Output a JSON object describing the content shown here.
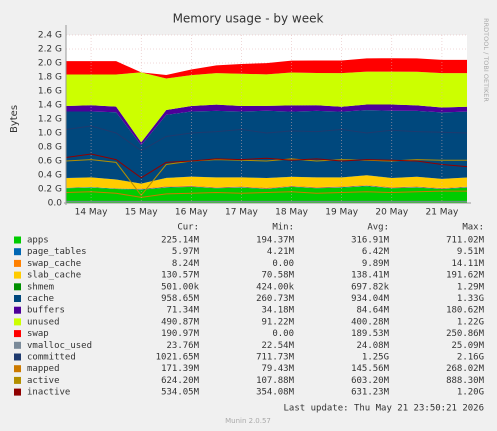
{
  "chart_data": {
    "type": "area",
    "title": "Memory usage - by week",
    "y_label": "Bytes",
    "side_text": "RRDTOOL / TOBI OETIKER",
    "footer": "Last update: Thu May 21 23:50:21 2026",
    "version": "Munin 2.0.57",
    "categories": [
      null,
      "14 May",
      null,
      "15 May",
      null,
      "16 May",
      null,
      "17 May",
      null,
      "18 May",
      null,
      "19 May",
      null,
      "20 May",
      null,
      "21 May",
      null
    ],
    "ylim": [
      0,
      2.4
    ],
    "yticks": [
      {
        "value": 0,
        "label": "0.0"
      },
      {
        "value": 0.2,
        "label": "0.2 G"
      },
      {
        "value": 0.4,
        "label": "0.4 G"
      },
      {
        "value": 0.6,
        "label": "0.6 G"
      },
      {
        "value": 0.8,
        "label": "0.8 G"
      },
      {
        "value": 1.0,
        "label": "1.0 G"
      },
      {
        "value": 1.2,
        "label": "1.2 G"
      },
      {
        "value": 1.4,
        "label": "1.4 G"
      },
      {
        "value": 1.6,
        "label": "1.6 G"
      },
      {
        "value": 1.8,
        "label": "1.8 G"
      },
      {
        "value": 2.0,
        "label": "2.0 G"
      },
      {
        "value": 2.2,
        "label": "2.2 G"
      },
      {
        "value": 2.4,
        "label": "2.4 G"
      }
    ],
    "grid": true,
    "legend_headers": [
      "Cur:",
      "Min:",
      "Avg:",
      "Max:"
    ],
    "series": [
      {
        "name": "apps",
        "color": "#00CC00",
        "style": "area",
        "stats": [
          "225.14M",
          "194.37M",
          "316.91M",
          "711.02M"
        ],
        "values": [
          0.21,
          0.22,
          0.2,
          0.19,
          0.22,
          0.23,
          0.21,
          0.22,
          0.2,
          0.23,
          0.21,
          0.22,
          0.24,
          0.21,
          0.22,
          0.2,
          0.22
        ]
      },
      {
        "name": "page_tables",
        "color": "#0066B3",
        "style": "area",
        "stats": [
          "5.97M",
          "4.21M",
          "6.42M",
          "9.51M"
        ],
        "values": [
          0.006,
          0.006,
          0.006,
          0.006,
          0.006,
          0.006,
          0.006,
          0.006,
          0.006,
          0.006,
          0.006,
          0.006,
          0.006,
          0.006,
          0.006,
          0.006,
          0.006
        ]
      },
      {
        "name": "swap_cache",
        "color": "#FF8000",
        "style": "area",
        "stats": [
          "8.24M",
          "0.00",
          "9.89M",
          "14.11M"
        ],
        "values": [
          0,
          0,
          0,
          0.01,
          0.012,
          0.01,
          0.009,
          0.01,
          0.011,
          0.008,
          0.01,
          0.009,
          0.01,
          0.011,
          0.009,
          0.008,
          0.008
        ]
      },
      {
        "name": "slab_cache",
        "color": "#FFCC00",
        "style": "area",
        "stats": [
          "130.57M",
          "70.58M",
          "138.41M",
          "191.62M"
        ],
        "values": [
          0.14,
          0.14,
          0.13,
          0.07,
          0.12,
          0.13,
          0.14,
          0.13,
          0.14,
          0.13,
          0.14,
          0.13,
          0.14,
          0.13,
          0.14,
          0.13,
          0.13
        ]
      },
      {
        "name": "shmem",
        "color": "#008F00",
        "style": "area",
        "stats": [
          "501.00k",
          "424.00k",
          "697.82k",
          "1.29M"
        ],
        "values": [
          0.0005,
          0.0005,
          0.0005,
          0.0005,
          0.0005,
          0.0005,
          0.0005,
          0.0005,
          0.0005,
          0.0005,
          0.0005,
          0.0005,
          0.0005,
          0.0005,
          0.0005,
          0.0005,
          0.0005
        ]
      },
      {
        "name": "cache",
        "color": "#00487D",
        "style": "area",
        "stats": [
          "958.65M",
          "260.73M",
          "934.04M",
          "1.33G"
        ],
        "values": [
          0.95,
          0.94,
          0.96,
          0.55,
          0.9,
          0.93,
          0.95,
          0.94,
          0.96,
          0.93,
          0.95,
          0.94,
          0.93,
          0.96,
          0.94,
          0.95,
          0.94
        ]
      },
      {
        "name": "buffers",
        "color": "#4D0099",
        "style": "area",
        "stats": [
          "71.34M",
          "34.18M",
          "84.64M",
          "180.62M"
        ],
        "values": [
          0.08,
          0.09,
          0.08,
          0.04,
          0.07,
          0.08,
          0.09,
          0.08,
          0.07,
          0.09,
          0.08,
          0.07,
          0.08,
          0.09,
          0.08,
          0.07,
          0.07
        ]
      },
      {
        "name": "unused",
        "color": "#CCFF00",
        "style": "area",
        "stats": [
          "490.87M",
          "91.22M",
          "400.28M",
          "1.22G"
        ],
        "values": [
          0.45,
          0.44,
          0.46,
          1.0,
          0.45,
          0.44,
          0.45,
          0.46,
          0.45,
          0.47,
          0.46,
          0.48,
          0.47,
          0.47,
          0.48,
          0.49,
          0.48
        ]
      },
      {
        "name": "swap",
        "color": "#FF0000",
        "style": "area",
        "stats": [
          "190.97M",
          "0.00",
          "189.53M",
          "250.86M"
        ],
        "values": [
          0.19,
          0.19,
          0.19,
          0,
          0.05,
          0.08,
          0.11,
          0.14,
          0.16,
          0.17,
          0.18,
          0.18,
          0.19,
          0.19,
          0.19,
          0.19,
          0.19
        ]
      },
      {
        "name": "vmalloc_used",
        "color": "#7A8A99",
        "style": "line",
        "stats": [
          "23.76M",
          "22.54M",
          "24.08M",
          "25.09M"
        ],
        "values": [
          0.024,
          0.024,
          0.024,
          0.023,
          0.024,
          0.024,
          0.024,
          0.024,
          0.024,
          0.024,
          0.024,
          0.024,
          0.024,
          0.024,
          0.024,
          0.024,
          0.023
        ]
      },
      {
        "name": "committed",
        "color": "#1F3A6E",
        "style": "line",
        "stats": [
          "1021.65M",
          "711.73M",
          "1.25G",
          "2.16G"
        ],
        "values": [
          1.05,
          1.1,
          1.0,
          0.75,
          0.95,
          1.0,
          1.02,
          1.05,
          1.0,
          1.03,
          1.02,
          1.05,
          1.0,
          1.04,
          1.02,
          1.01,
          1.0
        ]
      },
      {
        "name": "mapped",
        "color": "#CC7A00",
        "style": "line",
        "stats": [
          "171.39M",
          "79.43M",
          "145.56M",
          "268.02M"
        ],
        "values": [
          0.15,
          0.16,
          0.14,
          0.08,
          0.13,
          0.14,
          0.15,
          0.14,
          0.15,
          0.16,
          0.14,
          0.15,
          0.16,
          0.15,
          0.16,
          0.17,
          0.17
        ]
      },
      {
        "name": "active",
        "color": "#B38F00",
        "style": "line",
        "stats": [
          "624.20M",
          "107.88M",
          "603.20M",
          "888.30M"
        ],
        "values": [
          0.6,
          0.62,
          0.58,
          0.11,
          0.55,
          0.6,
          0.62,
          0.61,
          0.6,
          0.63,
          0.6,
          0.62,
          0.61,
          0.6,
          0.62,
          0.61,
          0.61
        ]
      },
      {
        "name": "inactive",
        "color": "#8F0000",
        "style": "line",
        "stats": [
          "534.05M",
          "354.08M",
          "631.23M",
          "1.20G"
        ],
        "values": [
          0.65,
          0.7,
          0.62,
          0.36,
          0.58,
          0.6,
          0.63,
          0.62,
          0.64,
          0.61,
          0.63,
          0.6,
          0.62,
          0.61,
          0.6,
          0.55,
          0.52
        ]
      }
    ]
  }
}
